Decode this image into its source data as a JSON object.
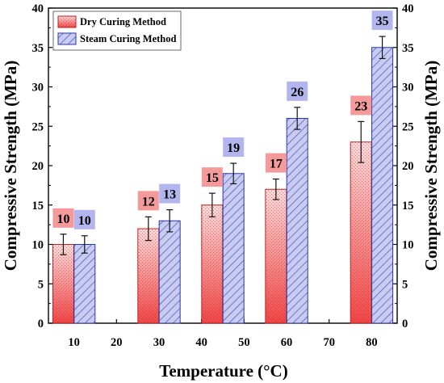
{
  "chart_data": {
    "type": "bar",
    "xlabel": "Temperature (°C)",
    "ylabel_left": "Compressive Strength (MPa)",
    "ylabel_right": "Compressive Strength (MPa)",
    "ylim": [
      0,
      40
    ],
    "yticks": [
      "0",
      "5",
      "10",
      "15",
      "20",
      "25",
      "30",
      "35",
      "40"
    ],
    "xlim": [
      4,
      86
    ],
    "xticks": [
      "10",
      "20",
      "30",
      "40",
      "50",
      "60",
      "70",
      "80"
    ],
    "legend_position": "top-left",
    "grid": false,
    "series": [
      {
        "name": "Dry Curing Method",
        "color": "#f06060",
        "label_bg": "#f49a9a",
        "x": [
          7.5,
          27.5,
          42.5,
          57.5,
          77.5
        ],
        "values": [
          10,
          12,
          15,
          17,
          23
        ],
        "errors": [
          1.3,
          1.5,
          1.5,
          1.3,
          2.6
        ],
        "labels": [
          "10",
          "12",
          "15",
          "17",
          "23"
        ]
      },
      {
        "name": "Steam Curing Method",
        "color": "#4a5ccc",
        "label_bg": "#b3b6ee",
        "x": [
          12.5,
          32.5,
          47.5,
          62.5,
          82.5
        ],
        "values": [
          10,
          13,
          19,
          26,
          35
        ],
        "errors": [
          1.1,
          1.4,
          1.3,
          1.4,
          1.4
        ],
        "labels": [
          "10",
          "13",
          "19",
          "26",
          "35"
        ]
      }
    ]
  }
}
